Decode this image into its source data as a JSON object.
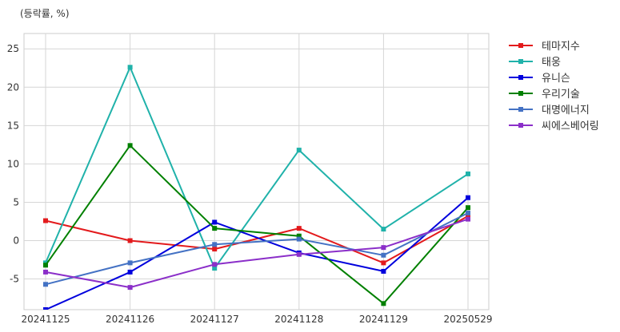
{
  "unit_label": "(등락률, %)",
  "chart_data": {
    "type": "line",
    "title": "",
    "xlabel": "",
    "ylabel": "(등락률, %)",
    "categories": [
      "20241125",
      "20241126",
      "20241127",
      "20241128",
      "20241129",
      "20250529"
    ],
    "ylim": [
      -9,
      27
    ],
    "yticks": [
      -5,
      0,
      5,
      10,
      15,
      20,
      25
    ],
    "grid": true,
    "legend_position": "outside-top-right",
    "series": [
      {
        "name": "테마지수",
        "color": "#e31a1c",
        "values": [
          2.6,
          0.0,
          -1.1,
          1.6,
          -2.9,
          3.2
        ]
      },
      {
        "name": "태웅",
        "color": "#20b2aa",
        "values": [
          -2.9,
          22.6,
          -3.6,
          11.8,
          1.5,
          8.7
        ]
      },
      {
        "name": "유니슨",
        "color": "#0000dd",
        "values": [
          -9.0,
          -4.1,
          2.4,
          -1.6,
          -4.0,
          5.6
        ]
      },
      {
        "name": "우리기술",
        "color": "#008000",
        "values": [
          -3.2,
          12.4,
          1.6,
          0.6,
          -8.2,
          4.3
        ]
      },
      {
        "name": "대명에너지",
        "color": "#4472c4",
        "values": [
          -5.7,
          -2.9,
          -0.5,
          0.2,
          -1.9,
          3.6
        ]
      },
      {
        "name": "씨에스베어링",
        "color": "#8b2fc9",
        "values": [
          -4.1,
          -6.1,
          -3.1,
          -1.8,
          -0.9,
          2.8
        ]
      }
    ]
  }
}
